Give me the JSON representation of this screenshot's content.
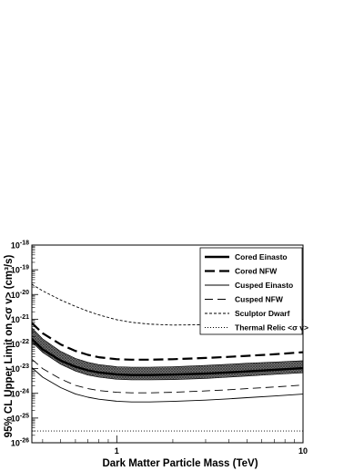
{
  "chart_data": {
    "type": "line",
    "xlabel": "Dark Matter Particle Mass (TeV)",
    "ylabel": "95% CL Upper Limit on <σ v> (cm³/s)",
    "xscale": "log",
    "yscale": "log",
    "xlim": [
      0.35,
      10
    ],
    "ylim": [
      1e-26,
      1e-18
    ],
    "x_ticks": [
      1,
      10
    ],
    "x_tick_labels": [
      "1",
      "10"
    ],
    "y_tick_labels": [
      {
        "base": "10",
        "exp": "-26"
      },
      {
        "base": "10",
        "exp": "-25"
      },
      {
        "base": "10",
        "exp": "-24"
      },
      {
        "base": "10",
        "exp": "-23"
      },
      {
        "base": "10",
        "exp": "-22"
      },
      {
        "base": "10",
        "exp": "-21"
      },
      {
        "base": "10",
        "exp": "-20"
      },
      {
        "base": "10",
        "exp": "-19"
      },
      {
        "base": "10",
        "exp": "-18"
      }
    ],
    "legend_position": "top-right",
    "band": {
      "x": [
        0.35,
        0.4,
        0.5,
        0.6,
        0.7,
        0.8,
        1.0,
        1.2,
        1.5,
        2.0,
        3.0,
        4.0,
        5.0,
        7.0,
        10.0
      ],
      "upper": [
        4.5e-22,
        1.6e-22,
        5e-23,
        2.6e-23,
        1.8e-23,
        1.45e-23,
        1.2e-23,
        1.15e-23,
        1.15e-23,
        1.2e-23,
        1.35e-23,
        1.5e-23,
        1.65e-23,
        1.85e-23,
        2.1e-23
      ],
      "lower": [
        1.2e-22,
        4.5e-23,
        1.5e-23,
        8e-24,
        5.5e-24,
        4.5e-24,
        3.7e-24,
        3.5e-24,
        3.5e-24,
        3.6e-24,
        4e-24,
        4.5e-24,
        5e-24,
        5.8e-24,
        6.8e-24
      ]
    },
    "series": [
      {
        "name": "Cored Einasto",
        "style": "thick-solid",
        "x": [
          0.35,
          0.4,
          0.5,
          0.6,
          0.7,
          0.8,
          1.0,
          1.2,
          1.5,
          2.0,
          3.0,
          4.0,
          5.0,
          7.0,
          10.0
        ],
        "y": [
          1.6e-22,
          6e-23,
          2.1e-23,
          1.2e-23,
          8.5e-24,
          7e-24,
          5.8e-24,
          5.5e-24,
          5.5e-24,
          5.7e-24,
          6.3e-24,
          7e-24,
          7.7e-24,
          8.9e-24,
          1.05e-23
        ]
      },
      {
        "name": "Cored NFW",
        "style": "thick-dashed",
        "x": [
          0.35,
          0.4,
          0.5,
          0.6,
          0.7,
          0.8,
          1.0,
          1.2,
          1.5,
          2.0,
          3.0,
          4.0,
          5.0,
          7.0,
          10.0
        ],
        "y": [
          7e-22,
          2.7e-22,
          9.5e-23,
          5.2e-23,
          3.6e-23,
          2.9e-23,
          2.4e-23,
          2.3e-23,
          2.3e-23,
          2.4e-23,
          2.7e-23,
          3e-23,
          3.3e-23,
          3.8e-23,
          4.6e-23
        ]
      },
      {
        "name": "Cusped Einasto",
        "style": "thin-solid",
        "x": [
          0.35,
          0.4,
          0.5,
          0.6,
          0.7,
          0.8,
          1.0,
          1.2,
          1.5,
          2.0,
          3.0,
          4.0,
          5.0,
          7.0,
          10.0
        ],
        "y": [
          1.1e-23,
          4.5e-24,
          1.7e-24,
          9.5e-25,
          7e-25,
          5.8e-25,
          4.8e-25,
          4.5e-25,
          4.5e-25,
          4.7e-25,
          5.3e-25,
          6e-25,
          6.7e-25,
          7.8e-25,
          9.3e-25
        ]
      },
      {
        "name": "Cusped NFW",
        "style": "thin-dashed",
        "x": [
          0.35,
          0.4,
          0.5,
          0.6,
          0.7,
          0.8,
          1.0,
          1.2,
          1.5,
          2.0,
          3.0,
          4.0,
          5.0,
          7.0,
          10.0
        ],
        "y": [
          2.4e-23,
          1e-23,
          3.8e-24,
          2.1e-24,
          1.55e-24,
          1.3e-24,
          1.1e-24,
          1.05e-24,
          1.05e-24,
          1.1e-24,
          1.25e-24,
          1.4e-24,
          1.55e-24,
          1.8e-24,
          2.15e-24
        ]
      },
      {
        "name": "Sculptor Dwarf",
        "style": "thin-short-dashed",
        "x": [
          0.35,
          0.4,
          0.5,
          0.6,
          0.7,
          0.8,
          1.0,
          1.2,
          1.5,
          2.0,
          3.0,
          4.0,
          5.0,
          7.0,
          10.0
        ],
        "y": [
          2.6e-20,
          1.4e-20,
          6e-21,
          3.3e-21,
          2.1e-21,
          1.5e-21,
          9.5e-22,
          7.5e-22,
          6.3e-22,
          5.8e-22,
          6e-22,
          6.5e-22,
          7e-22,
          8e-22,
          9.5e-22
        ]
      },
      {
        "name": "Thermal Relic <σ v>",
        "style": "dotted",
        "x": [
          0.35,
          10.0
        ],
        "y": [
          3e-26,
          3e-26
        ]
      }
    ]
  }
}
